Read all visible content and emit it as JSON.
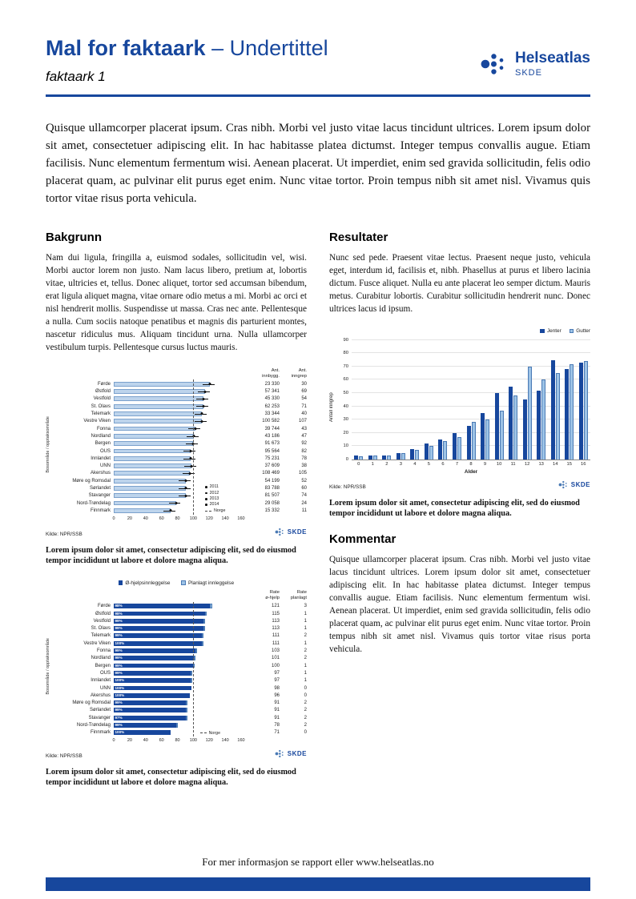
{
  "header": {
    "title": "Mal for faktaark",
    "title_suffix": "– Undertittel",
    "subtitle": "faktaark 1",
    "logo": {
      "name": "Helseatlas",
      "sub": "SKDE"
    }
  },
  "skde": "SKDE",
  "intro": "Quisque ullamcorper placerat ipsum. Cras nibh. Morbi vel justo vitae lacus tincidunt ultrices. Lorem ipsum dolor sit amet, consectetuer adipiscing elit. In hac habitasse platea dictumst. Integer tempus convallis augue. Etiam facilisis. Nunc elementum fermentum wisi. Aenean placerat. Ut imperdiet, enim sed gravida sollicitudin, felis odio placerat quam, ac pulvinar elit purus eget enim. Nunc vitae tortor. Proin tempus nibh sit amet nisl. Vivamus quis tortor vitae risus porta vehicula.",
  "sections": {
    "bakgrunn": {
      "heading": "Bakgrunn",
      "body": "Nam dui ligula, fringilla a, euismod sodales, sollicitudin vel, wisi. Morbi auctor lorem non justo. Nam lacus libero, pretium at, lobortis vitae, ultricies et, tellus. Donec aliquet, tortor sed accumsan bibendum, erat ligula aliquet magna, vitae ornare odio metus a mi. Morbi ac orci et nisl hendrerit mollis. Suspendisse ut massa. Cras nec ante. Pellentesque a nulla. Cum sociis natoque penatibus et magnis dis parturient montes, nascetur ridiculus mus. Aliquam tincidunt urna. Nulla ullamcorper vestibulum turpis. Pellentesque cursus luctus mauris."
    },
    "resultater": {
      "heading": "Resultater",
      "body": "Nunc sed pede. Praesent vitae lectus. Praesent neque justo, vehicula eget, interdum id, facilisis et, nibh. Phasellus at purus et libero lacinia dictum. Fusce aliquet. Nulla eu ante placerat leo semper dictum. Mauris metus. Curabitur lobortis. Curabitur sollicitudin hendrerit nunc. Donec ultrices lacus id ipsum."
    },
    "kommentar": {
      "heading": "Kommentar",
      "body": "Quisque ullamcorper placerat ipsum. Cras nibh. Morbi vel justo vitae lacus tincidunt ultrices. Lorem ipsum dolor sit amet, consectetuer adipiscing elit. In hac habitasse platea dictumst. Integer tempus convallis augue. Etiam facilisis. Nunc elementum fermentum wisi. Aenean placerat. Ut imperdiet, enim sed gravida sollicitudin, felis odio placerat quam, ac pulvinar elit purus eget enim. Nunc vitae tortor. Proin tempus nibh sit amet nisl. Vivamus quis tortor vitae risus porta vehicula."
    }
  },
  "captions": {
    "chart1": "Lorem ipsum dolor sit amet, consectetur adipiscing elit, sed do eiusmod tempor incididunt ut labore et dolore magna aliqua.",
    "chart2": "Lorem ipsum dolor sit amet, consectetur adipiscing elit, sed do eiusmod tempor incididunt ut labore et dolore magna aliqua.",
    "chart3": "Lorem ipsum dolor sit amet, consectetur adipiscing elit, sed do eiusmod tempor incididunt ut labore et dolore magna aliqua."
  },
  "footer": {
    "text": "For mer informasjon se rapport eller www.helseatlas.no"
  },
  "colors": {
    "primary": "#17479d",
    "bar_dark": "#17479d",
    "bar_light": "#9dc3e6",
    "bar_pale": "#bdd4ec"
  },
  "chart_data": [
    {
      "type": "bar",
      "orientation": "horizontal",
      "ylabel": "Bosområde / opptaksområde",
      "col_headers": [
        "Ant.\ninnbygg.",
        "Ant.\ninngrep"
      ],
      "categories": [
        "Førde",
        "Østfold",
        "Vestfold",
        "St. Olavs",
        "Telemark",
        "Vestre Viken",
        "Fonna",
        "Nordland",
        "Bergen",
        "OUS",
        "Innlandet",
        "UNN",
        "Akershus",
        "Møre og Romsdal",
        "Sørlandet",
        "Stavanger",
        "Nord-Trøndelag",
        "Finnmark"
      ],
      "rates": [
        121,
        115,
        113,
        113,
        111,
        111,
        103,
        101,
        100,
        97,
        97,
        98,
        96,
        91,
        91,
        91,
        78,
        71
      ],
      "col1_values": [
        "23 330",
        "57 341",
        "45 330",
        "62 253",
        "33 344",
        "100 582",
        "39 744",
        "43 186",
        "91 673",
        "95 564",
        "75 231",
        "37 609",
        "108 469",
        "54 199",
        "83 788",
        "81 507",
        "29 058",
        "15 332"
      ],
      "col2_values": [
        30,
        69,
        54,
        71,
        40,
        107,
        43,
        47,
        92,
        82,
        78,
        38,
        105,
        52,
        60,
        74,
        24,
        11
      ],
      "xticks": [
        0,
        20,
        40,
        60,
        80,
        100,
        120,
        140,
        160
      ],
      "xmax": 160,
      "norge_line": 100,
      "legend_years": [
        "2011",
        "2012",
        "2013",
        "2014"
      ],
      "legend_norge": "Norge",
      "source": "Kilde: NPR/SSB"
    },
    {
      "type": "bar",
      "orientation": "vertical",
      "xlabel": "Alder",
      "ylabel": "Antall inngrep",
      "categories": [
        0,
        1,
        2,
        3,
        4,
        5,
        6,
        7,
        8,
        9,
        10,
        11,
        12,
        13,
        14,
        15,
        16
      ],
      "series": [
        {
          "name": "Jenter",
          "color": "#17479d",
          "values": [
            3,
            3,
            3,
            5,
            8,
            12,
            15,
            20,
            25,
            35,
            50,
            55,
            45,
            52,
            75,
            68,
            73
          ]
        },
        {
          "name": "Gutter",
          "color": "#9dc3e6",
          "values": [
            2,
            3,
            3,
            5,
            7,
            10,
            14,
            17,
            28,
            30,
            37,
            48,
            70,
            60,
            65,
            72,
            74
          ]
        }
      ],
      "ylim": [
        0,
        90
      ],
      "yticks": [
        0,
        10,
        20,
        30,
        40,
        50,
        60,
        70,
        80,
        90
      ],
      "legend_position": "top-right",
      "grid": true,
      "source": "Kilde: NPR/SSB"
    },
    {
      "type": "bar",
      "orientation": "horizontal",
      "stacked": true,
      "ylabel": "Bosområde / opptaksområde",
      "legend": [
        "Ø-hjelpsinnleggelse",
        "Planlagt innleggelse"
      ],
      "col_headers": [
        "Rate\nø-hjelp",
        "Rate\nplanlagt"
      ],
      "categories": [
        "Førde",
        "Østfold",
        "Vestfold",
        "St. Olavs",
        "Telemark",
        "Vestre Viken",
        "Fonna",
        "Nordland",
        "Bergen",
        "OUS",
        "Innlandet",
        "UNN",
        "Akershus",
        "Møre og Romsdal",
        "Sørlandet",
        "Stavanger",
        "Nord-Trøndelag",
        "Finnmark"
      ],
      "pct_labels": [
        "98%",
        "98%",
        "99%",
        "99%",
        "99%",
        "100%",
        "99%",
        "99%",
        "99%",
        "99%",
        "100%",
        "100%",
        "100%",
        "99%",
        "99%",
        "97%",
        "99%",
        "100%"
      ],
      "values_primary": [
        121,
        115,
        113,
        113,
        111,
        111,
        103,
        101,
        100,
        97,
        97,
        98,
        96,
        91,
        91,
        91,
        78,
        71
      ],
      "values_secondary": [
        3,
        1,
        1,
        1,
        2,
        1,
        2,
        2,
        1,
        1,
        1,
        0,
        0,
        2,
        2,
        2,
        2,
        0
      ],
      "xticks": [
        0,
        20,
        40,
        60,
        80,
        100,
        120,
        140,
        160
      ],
      "xmax": 160,
      "norge_line": 100,
      "legend_norge": "Norge",
      "source": "Kilde: NPR/SSB"
    }
  ]
}
